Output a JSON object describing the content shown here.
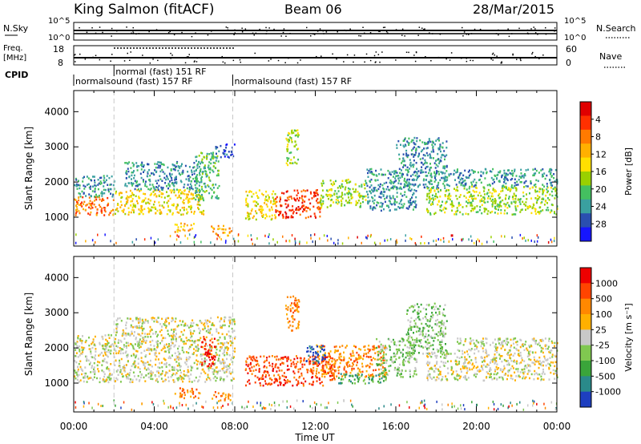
{
  "header": {
    "station": "King Salmon (fitACF)",
    "beam": "Beam 06",
    "date": "28/Mar/2015"
  },
  "status_panels": {
    "nsky_label": "N.Sky",
    "nsky_ticks": [
      "10^5",
      "10^0"
    ],
    "nsearch_label": "N.Search",
    "nsearch_ticks": [
      "10^5",
      "10^0"
    ],
    "freq_label_1": "Freq.",
    "freq_label_2": "[MHz]",
    "freq_ticks": [
      "18",
      "8"
    ],
    "nave_label": "Nave",
    "nave_ticks": [
      "60",
      "0"
    ],
    "cpid_label": "CPID",
    "cpid_segments": [
      {
        "start": 0,
        "end": 7.9,
        "text": "normalsound (fast) 157 RF",
        "row": 1
      },
      {
        "start": 2.0,
        "end": 7.9,
        "text": "normal (fast) 151 RF",
        "row": 0
      },
      {
        "start": 7.9,
        "end": 24,
        "text": "normalsound (fast) 157 RF",
        "row": 1
      }
    ]
  },
  "chart_data": [
    {
      "type": "heatmap",
      "title": "",
      "ylabel": "Slant Range [km]",
      "xlabel": "",
      "x_range_hours": [
        0,
        24
      ],
      "ylim": [
        180,
        4600
      ],
      "yticks": [
        1000,
        2000,
        3000,
        4000
      ],
      "colorbar_label": "Power [dB]",
      "colorbar_ticks": [
        "4",
        "8",
        "12",
        "16",
        "20",
        "24",
        "28"
      ],
      "colorbar_colors": [
        "#1616ff",
        "#2a4fb0",
        "#3aa0a0",
        "#44c060",
        "#9ad000",
        "#ffe000",
        "#ffb000",
        "#ff7a00",
        "#ff3000",
        "#e00000"
      ],
      "bands": [
        {
          "t": [
            0.0,
            2.0
          ],
          "range": [
            1050,
            1600
          ],
          "level": 7
        },
        {
          "t": [
            0.0,
            2.0
          ],
          "range": [
            1600,
            2200
          ],
          "level": 2
        },
        {
          "t": [
            2.0,
            6.5
          ],
          "range": [
            1100,
            1800
          ],
          "level": 5
        },
        {
          "t": [
            2.5,
            6.5
          ],
          "range": [
            1800,
            2600
          ],
          "level": 2
        },
        {
          "t": [
            6.0,
            7.2
          ],
          "range": [
            1500,
            2900
          ],
          "level": 3
        },
        {
          "t": [
            7.0,
            8.0
          ],
          "range": [
            2700,
            3100
          ],
          "level": 1
        },
        {
          "t": [
            5.0,
            6.0
          ],
          "range": [
            600,
            850
          ],
          "level": 6
        },
        {
          "t": [
            6.8,
            7.8
          ],
          "range": [
            500,
            780
          ],
          "level": 6
        },
        {
          "t": [
            8.5,
            10.0
          ],
          "range": [
            950,
            1800
          ],
          "level": 5
        },
        {
          "t": [
            10.0,
            12.2
          ],
          "range": [
            1000,
            1800
          ],
          "level": 8
        },
        {
          "t": [
            12.2,
            14.5
          ],
          "range": [
            1300,
            2100
          ],
          "level": 4
        },
        {
          "t": [
            14.5,
            17.0
          ],
          "range": [
            1200,
            2400
          ],
          "level": 2
        },
        {
          "t": [
            16.0,
            18.5
          ],
          "range": [
            1800,
            3300
          ],
          "level": 2
        },
        {
          "t": [
            17.5,
            24.0
          ],
          "range": [
            1100,
            1900
          ],
          "level": 4
        },
        {
          "t": [
            18.5,
            24.0
          ],
          "range": [
            1900,
            2400
          ],
          "level": 2
        },
        {
          "t": [
            10.5,
            11.2
          ],
          "range": [
            2500,
            3500
          ],
          "level": 4
        }
      ]
    },
    {
      "type": "heatmap",
      "title": "",
      "ylabel": "Slant Range [km]",
      "xlabel": "Time UT",
      "x_range_hours": [
        0,
        24
      ],
      "ylim": [
        180,
        4600
      ],
      "yticks": [
        1000,
        2000,
        3000,
        4000
      ],
      "xtick_labels": [
        "00:00",
        "04:00",
        "08:00",
        "12:00",
        "16:00",
        "20:00",
        "00:00"
      ],
      "colorbar_label": "Velocity [m s⁻¹]",
      "colorbar_ticks": [
        "1000",
        "500",
        "100",
        "25",
        "-25",
        "-100",
        "-500",
        "-1000"
      ],
      "colorbar_colors": [
        "#1e3fc0",
        "#2a8a8a",
        "#3aa53a",
        "#80c850",
        "#c8c8c8",
        "#ffb000",
        "#ff8800",
        "#ff4400",
        "#ee0000"
      ],
      "bands": [
        {
          "t": [
            0.0,
            8.0
          ],
          "range": [
            1050,
            2400
          ],
          "level": 4
        },
        {
          "t": [
            2.0,
            8.0
          ],
          "range": [
            2400,
            2900
          ],
          "level": 4
        },
        {
          "t": [
            6.3,
            7.0
          ],
          "range": [
            1500,
            2400
          ],
          "level": 8
        },
        {
          "t": [
            5.0,
            6.3
          ],
          "range": [
            600,
            900
          ],
          "level": 6
        },
        {
          "t": [
            6.8,
            7.8
          ],
          "range": [
            500,
            780
          ],
          "level": 6
        },
        {
          "t": [
            8.5,
            13.0
          ],
          "range": [
            950,
            1800
          ],
          "level": 7
        },
        {
          "t": [
            12.0,
            15.5
          ],
          "range": [
            1200,
            2100
          ],
          "level": 6
        },
        {
          "t": [
            11.5,
            12.5
          ],
          "range": [
            1600,
            2100
          ],
          "level": 0
        },
        {
          "t": [
            13.0,
            15.5
          ],
          "range": [
            1000,
            1300
          ],
          "level": 2
        },
        {
          "t": [
            15.0,
            17.0
          ],
          "range": [
            1200,
            2300
          ],
          "level": 3
        },
        {
          "t": [
            16.5,
            18.5
          ],
          "range": [
            1800,
            3300
          ],
          "level": 3
        },
        {
          "t": [
            17.5,
            24.0
          ],
          "range": [
            1100,
            1900
          ],
          "level": 4
        },
        {
          "t": [
            19.0,
            24.0
          ],
          "range": [
            1900,
            2300
          ],
          "level": 4
        },
        {
          "t": [
            10.5,
            11.2
          ],
          "range": [
            2500,
            3500
          ],
          "level": 6
        }
      ]
    }
  ]
}
